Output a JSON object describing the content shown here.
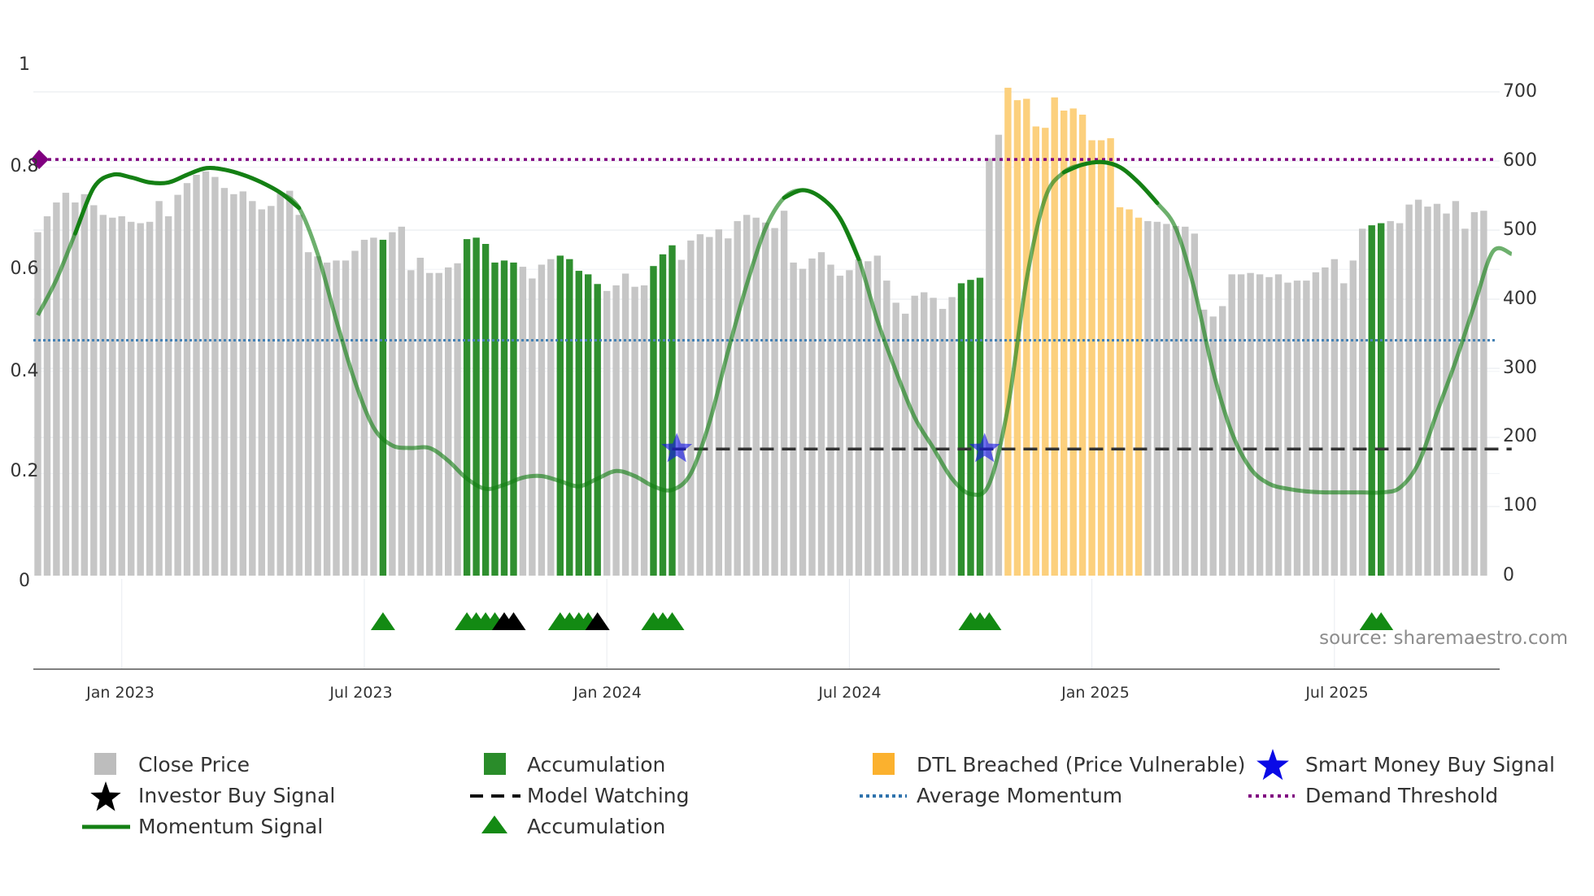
{
  "chart_data": {
    "type": "bar",
    "title": "",
    "xlabel": "",
    "ylabel": "",
    "left_axis": {
      "ylim": [
        0,
        1
      ],
      "ticks": [
        0,
        0.2,
        0.4,
        0.6,
        0.8,
        1
      ],
      "tick_labels": [
        "0",
        "0.2",
        "0.4",
        "0.6",
        "0.8",
        "1"
      ]
    },
    "right_axis": {
      "ylim": [
        0,
        700
      ],
      "ticks": [
        0,
        100,
        200,
        300,
        400,
        500,
        600,
        700
      ],
      "tick_labels": [
        "0",
        "100",
        "200",
        "300",
        "400",
        "500",
        "600",
        "700"
      ]
    },
    "date_ticks": [
      {
        "week": 9,
        "label": "Jan 2023"
      },
      {
        "week": 35,
        "label": "Jul 2023"
      },
      {
        "week": 61,
        "label": "Jan 2024"
      },
      {
        "week": 87,
        "label": "Jul 2024"
      },
      {
        "week": 113,
        "label": "Jan 2025"
      },
      {
        "week": 139,
        "label": "Jul 2025"
      }
    ],
    "close_price": [
      497,
      520,
      540,
      554,
      540,
      552,
      536,
      522,
      518,
      520,
      512,
      510,
      512,
      542,
      520,
      551,
      568,
      580,
      585,
      577,
      561,
      552,
      556,
      542,
      530,
      535,
      553,
      557,
      522,
      468,
      462,
      453,
      456,
      456,
      470,
      486,
      489,
      486,
      497,
      505,
      442,
      460,
      438,
      438,
      446,
      452,
      487,
      489,
      480,
      453,
      456,
      453,
      447,
      430,
      450,
      458,
      463,
      458,
      441,
      436,
      422,
      412,
      420,
      437,
      418,
      420,
      448,
      465,
      478,
      457,
      485,
      494,
      490,
      501,
      488,
      513,
      522,
      518,
      511,
      503,
      528,
      453,
      444,
      459,
      468,
      450,
      434,
      442,
      458,
      455,
      463,
      427,
      395,
      379,
      405,
      410,
      402,
      386,
      403,
      423,
      428,
      431,
      604,
      638,
      706,
      688,
      690,
      650,
      648,
      692,
      673,
      676,
      667,
      630,
      630,
      633,
      533,
      530,
      518,
      513,
      512,
      509,
      506,
      505,
      495,
      385,
      375,
      390,
      436,
      436,
      438,
      436,
      432,
      436,
      424,
      427,
      427,
      439,
      446,
      458,
      423,
      456,
      502,
      507,
      510,
      513,
      510,
      537,
      544,
      534,
      538,
      524,
      542,
      502,
      526,
      528
    ],
    "close_price_label": "Close Price",
    "accumulation_weeks": [
      37,
      46,
      47,
      48,
      49,
      50,
      51,
      56,
      57,
      58,
      59,
      60,
      66,
      67,
      68,
      99,
      100,
      101,
      143,
      144
    ],
    "accumulation_label": "Accumulation",
    "dtl_weeks": [
      104,
      105,
      106,
      107,
      108,
      109,
      110,
      111,
      112,
      113,
      114,
      115,
      116,
      117,
      118
    ],
    "dtl_label": "DTL Breached (Price Vulnerable)",
    "momentum": {
      "label": "Momentum Signal",
      "points": [
        [
          0,
          0.51
        ],
        [
          2,
          0.58
        ],
        [
          4,
          0.67
        ],
        [
          6,
          0.76
        ],
        [
          8,
          0.785
        ],
        [
          10,
          0.78
        ],
        [
          12,
          0.77
        ],
        [
          14,
          0.77
        ],
        [
          16,
          0.785
        ],
        [
          18,
          0.798
        ],
        [
          20,
          0.795
        ],
        [
          22,
          0.785
        ],
        [
          24,
          0.77
        ],
        [
          26,
          0.75
        ],
        [
          28,
          0.72
        ],
        [
          30,
          0.63
        ],
        [
          32,
          0.5
        ],
        [
          34,
          0.38
        ],
        [
          36,
          0.29
        ],
        [
          38,
          0.255
        ],
        [
          40,
          0.25
        ],
        [
          42,
          0.25
        ],
        [
          44,
          0.225
        ],
        [
          46,
          0.19
        ],
        [
          48,
          0.17
        ],
        [
          50,
          0.178
        ],
        [
          52,
          0.192
        ],
        [
          54,
          0.195
        ],
        [
          56,
          0.185
        ],
        [
          58,
          0.175
        ],
        [
          60,
          0.19
        ],
        [
          62,
          0.205
        ],
        [
          64,
          0.195
        ],
        [
          66,
          0.175
        ],
        [
          68,
          0.168
        ],
        [
          70,
          0.2
        ],
        [
          72,
          0.3
        ],
        [
          74,
          0.44
        ],
        [
          76,
          0.57
        ],
        [
          78,
          0.68
        ],
        [
          80,
          0.74
        ],
        [
          82,
          0.755
        ],
        [
          84,
          0.74
        ],
        [
          86,
          0.7
        ],
        [
          88,
          0.62
        ],
        [
          90,
          0.5
        ],
        [
          92,
          0.4
        ],
        [
          94,
          0.31
        ],
        [
          96,
          0.25
        ],
        [
          98,
          0.19
        ],
        [
          100,
          0.16
        ],
        [
          102,
          0.18
        ],
        [
          104,
          0.33
        ],
        [
          106,
          0.58
        ],
        [
          108,
          0.74
        ],
        [
          110,
          0.79
        ],
        [
          112,
          0.805
        ],
        [
          114,
          0.81
        ],
        [
          116,
          0.8
        ],
        [
          118,
          0.77
        ],
        [
          120,
          0.73
        ],
        [
          122,
          0.68
        ],
        [
          124,
          0.56
        ],
        [
          126,
          0.4
        ],
        [
          128,
          0.28
        ],
        [
          130,
          0.21
        ],
        [
          132,
          0.18
        ],
        [
          134,
          0.17
        ],
        [
          136,
          0.165
        ],
        [
          138,
          0.163
        ],
        [
          140,
          0.163
        ],
        [
          142,
          0.163
        ],
        [
          144,
          0.163
        ],
        [
          146,
          0.172
        ],
        [
          148,
          0.22
        ],
        [
          150,
          0.32
        ],
        [
          152,
          0.42
        ],
        [
          154,
          0.53
        ],
        [
          156,
          0.635
        ],
        [
          158,
          0.63
        ]
      ],
      "highlight_segments": [
        [
          4,
          28
        ],
        [
          80,
          88
        ],
        [
          110,
          121
        ]
      ]
    },
    "average_momentum": {
      "value": 0.461,
      "label": "Average Momentum"
    },
    "demand_threshold": {
      "value": 0.815,
      "label": "Demand Threshold"
    },
    "model_watching": {
      "from_week": 68,
      "to_week": 158,
      "value": 0.248,
      "label": "Model Watching"
    },
    "smart_money_signals": {
      "weeks": [
        68.5,
        101.5
      ],
      "value": 0.248,
      "label": "Smart Money Buy Signal"
    },
    "accumulation_markers": {
      "weeks": [
        37,
        46,
        47,
        48,
        49,
        56,
        57,
        58,
        59,
        66,
        67,
        68,
        100,
        101,
        102,
        143,
        144
      ],
      "label": "Accumulation"
    },
    "investor_buy_markers": {
      "weeks": [
        50,
        51,
        60
      ],
      "label": "Investor Buy Signal"
    },
    "source": "source: sharemaestro.com",
    "colors": {
      "close": "#c6c6c6",
      "accumulation": "#2f8f2f",
      "dtl": "#fcd07d",
      "momentum": "#148014",
      "average": "#4682b4",
      "demand": "#800080",
      "smart": "#1515e6",
      "investor": "#000000",
      "model": "#333333"
    }
  }
}
